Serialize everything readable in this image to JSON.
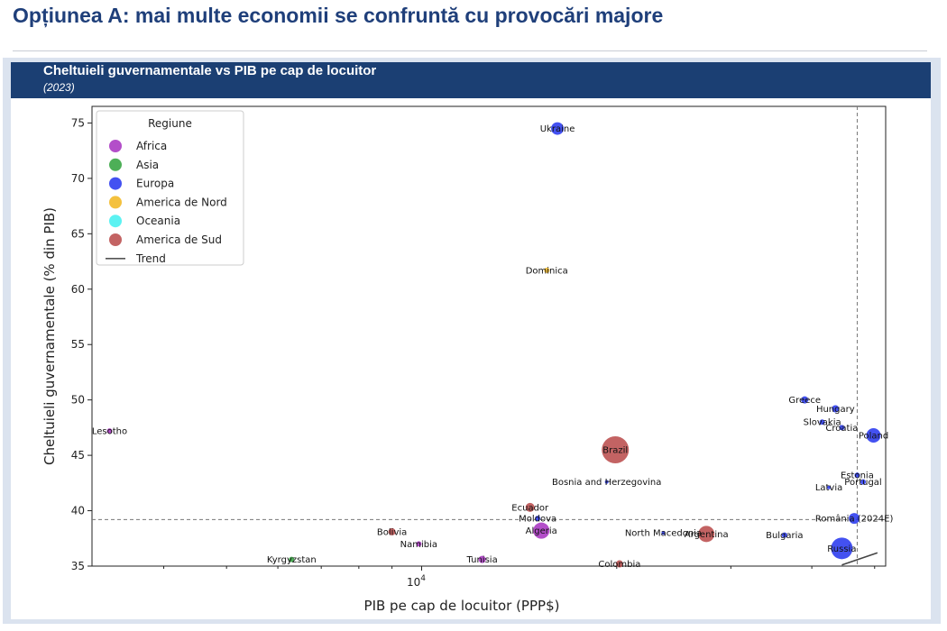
{
  "slide": {
    "title": "Opțiunea A: mai multe economii se confruntă cu provocări majore"
  },
  "panel": {
    "title": "Cheltuieli guvernamentale vs PIB pe cap de locuitor",
    "subtitle": "(2023)"
  },
  "chart_data": {
    "type": "scatter",
    "title": "Cheltuieli guvernamentale vs PIB pe cap de locuitor",
    "subtitle": "(2023)",
    "xlabel": "PIB pe cap de locuitor (PPP$)",
    "ylabel": "Cheltuieli guvernamentale (% din PIB)",
    "xscale": "log",
    "xlim": [
      3100,
      52000
    ],
    "ylim": [
      35,
      76.5
    ],
    "x_tick_labels": [
      {
        "value": 10000,
        "label": "10^4"
      }
    ],
    "y_ticks": [
      35,
      40,
      45,
      50,
      55,
      60,
      65,
      70,
      75
    ],
    "grid": false,
    "reference_lines": {
      "x": 47000,
      "y": 39.2,
      "style": "dashed"
    },
    "legend": {
      "title": "Regiune",
      "placement": "top-left",
      "entries": [
        {
          "name": "Africa",
          "color": "#a62fbf"
        },
        {
          "name": "Asia",
          "color": "#2ea13a"
        },
        {
          "name": "Europa",
          "color": "#2233ee"
        },
        {
          "name": "America de Nord",
          "color": "#f2b61c"
        },
        {
          "name": "Oceania",
          "color": "#3ff0f0"
        },
        {
          "name": "America de Sud",
          "color": "#b84848"
        },
        {
          "name": "Trend",
          "color": "#555555",
          "kind": "line"
        }
      ]
    },
    "trend": {
      "x": [
        44500,
        50500
      ],
      "y": [
        35.1,
        36.2
      ]
    },
    "points": [
      {
        "label": "Ukraine",
        "x": 16200,
        "y": 74.5,
        "region": "Europa",
        "size": 7
      },
      {
        "label": "Dominica",
        "x": 15600,
        "y": 61.7,
        "region": "America de Nord",
        "size": 3
      },
      {
        "label": "Lesotho",
        "x": 3300,
        "y": 47.2,
        "region": "Africa",
        "size": 3
      },
      {
        "label": "Greece",
        "x": 39000,
        "y": 50.0,
        "region": "Europa",
        "size": 4
      },
      {
        "label": "Hungary",
        "x": 43500,
        "y": 49.2,
        "region": "Europa",
        "size": 4
      },
      {
        "label": "Slovakia",
        "x": 41500,
        "y": 48.0,
        "region": "Europa",
        "size": 3
      },
      {
        "label": "Croatia",
        "x": 44500,
        "y": 47.5,
        "region": "Europa",
        "size": 3
      },
      {
        "label": "Poland",
        "x": 49800,
        "y": 46.8,
        "region": "Europa",
        "size": 8
      },
      {
        "label": "Brazil",
        "x": 19900,
        "y": 45.5,
        "region": "America de Sud",
        "size": 15
      },
      {
        "label": "Bosnia and Herzegovina",
        "x": 19300,
        "y": 42.6,
        "region": "Europa",
        "size": 2
      },
      {
        "label": "Estonia",
        "x": 47000,
        "y": 43.2,
        "region": "Europa",
        "size": 3
      },
      {
        "label": "Portugal",
        "x": 48000,
        "y": 42.6,
        "region": "Europa",
        "size": 3
      },
      {
        "label": "Latvia",
        "x": 42500,
        "y": 42.1,
        "region": "Europa",
        "size": 2
      },
      {
        "label": "Ecuador",
        "x": 14700,
        "y": 40.3,
        "region": "America de Sud",
        "size": 5
      },
      {
        "label": "Moldova",
        "x": 15100,
        "y": 39.3,
        "region": "Europa",
        "size": 3
      },
      {
        "label": "România (2024E)",
        "x": 46500,
        "y": 39.3,
        "region": "Europa",
        "size": 6
      },
      {
        "label": "Bolivia",
        "x": 9000,
        "y": 38.1,
        "region": "America de Sud",
        "size": 4
      },
      {
        "label": "Algeria",
        "x": 15300,
        "y": 38.2,
        "region": "Africa",
        "size": 9
      },
      {
        "label": "North Macedonia",
        "x": 23600,
        "y": 38.0,
        "region": "Europa",
        "size": 2
      },
      {
        "label": "Argentina",
        "x": 27500,
        "y": 37.9,
        "region": "America de Sud",
        "size": 9
      },
      {
        "label": "Bulgaria",
        "x": 36300,
        "y": 37.8,
        "region": "Europa",
        "size": 3
      },
      {
        "label": "Namibia",
        "x": 9900,
        "y": 37.0,
        "region": "Africa",
        "size": 3
      },
      {
        "label": "Russia",
        "x": 44500,
        "y": 36.6,
        "region": "Europa",
        "size": 12
      },
      {
        "label": "Kyrgyzstan",
        "x": 6300,
        "y": 35.6,
        "region": "Asia",
        "size": 3
      },
      {
        "label": "Tunisia",
        "x": 12400,
        "y": 35.6,
        "region": "Africa",
        "size": 4
      },
      {
        "label": "Colombia",
        "x": 20200,
        "y": 35.2,
        "region": "America de Sud",
        "size": 4
      }
    ]
  }
}
